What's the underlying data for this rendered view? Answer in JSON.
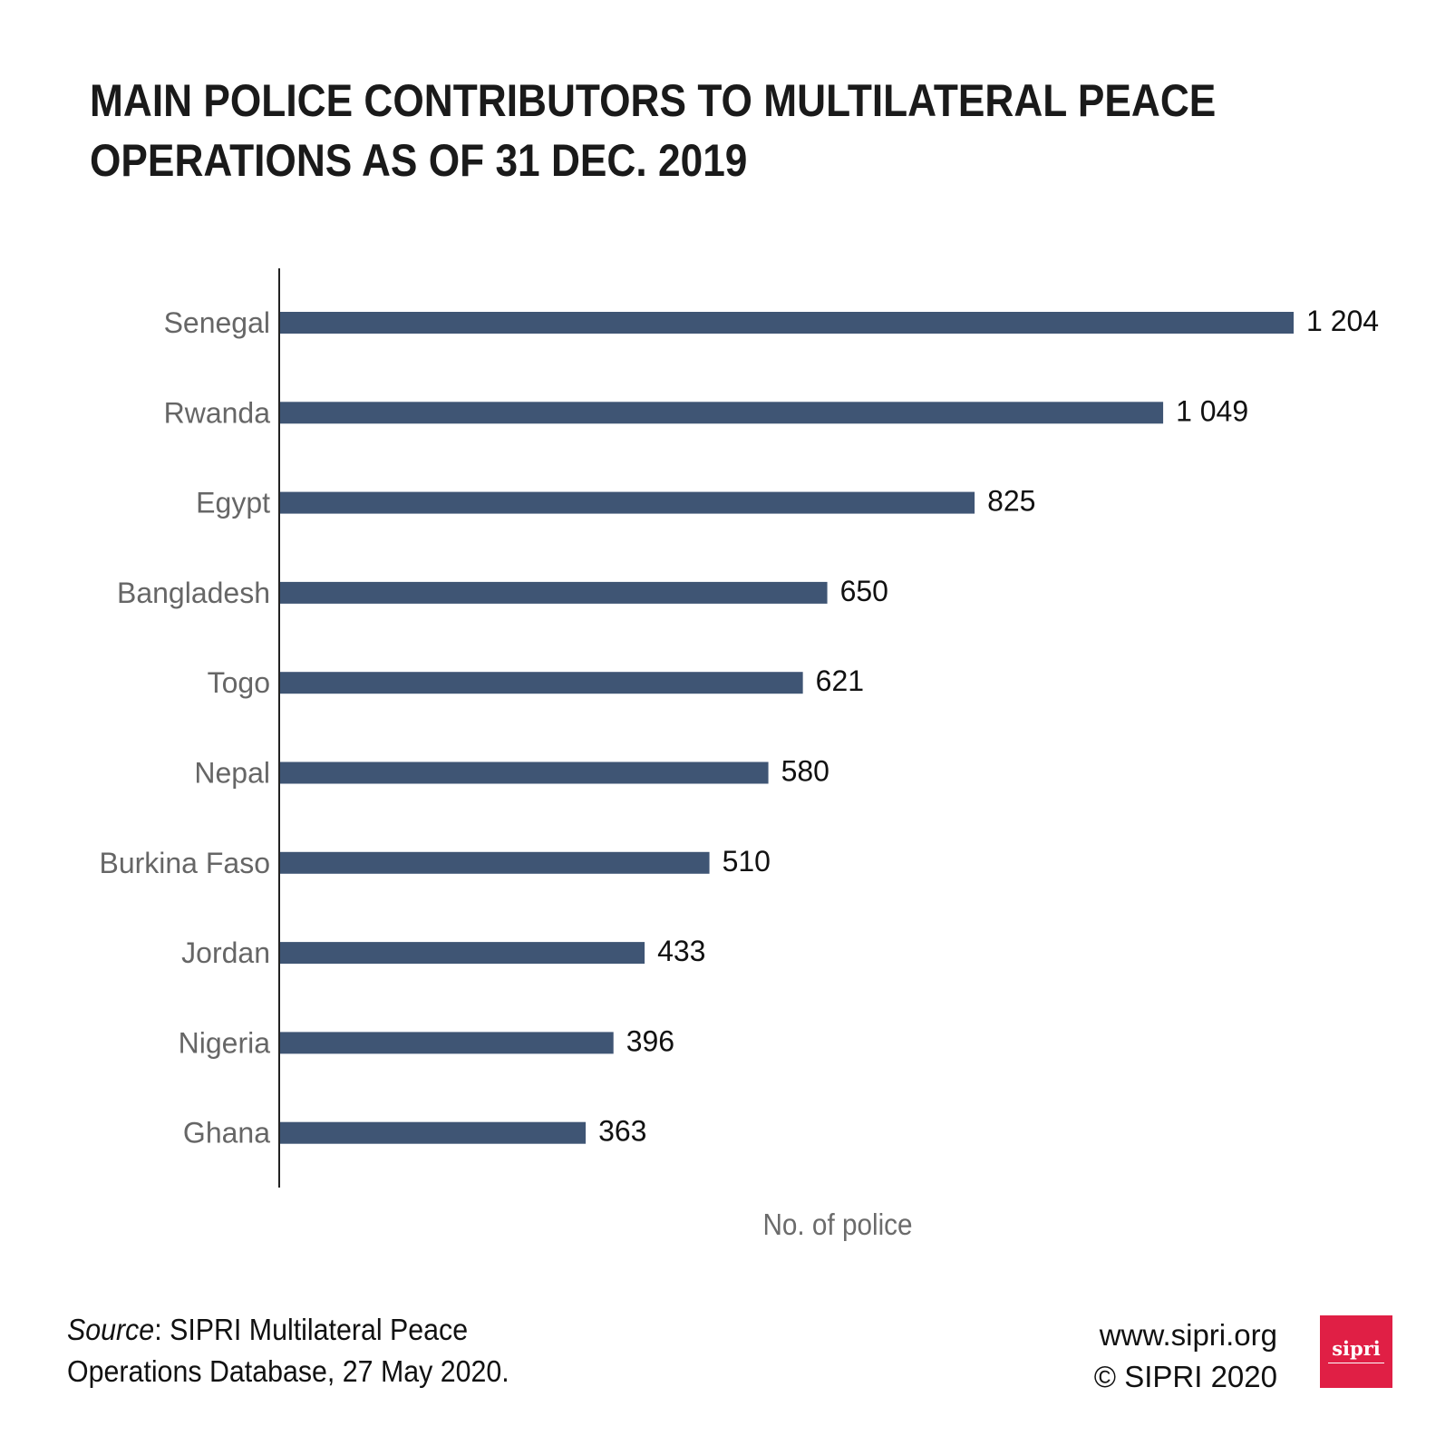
{
  "title": [
    "MAIN POLICE CONTRIBUTORS TO MULTILATERAL PEACE",
    "OPERATIONS AS OF 31 DEC. 2019"
  ],
  "chart_data": {
    "type": "bar",
    "orientation": "horizontal",
    "categories": [
      "Senegal",
      "Rwanda",
      "Egypt",
      "Bangladesh",
      "Togo",
      "Nepal",
      "Burkina Faso",
      "Jordan",
      "Nigeria",
      "Ghana"
    ],
    "values": [
      1204,
      1049,
      825,
      650,
      621,
      580,
      510,
      433,
      396,
      363
    ],
    "value_labels": [
      "1 204",
      "1 049",
      "825",
      "650",
      "621",
      "580",
      "510",
      "433",
      "396",
      "363"
    ],
    "xlabel": "No. of police",
    "xlim": [
      0,
      1204
    ],
    "grid": false,
    "bar_color": "#3f5574"
  },
  "footer": {
    "source_label": "Source",
    "source_text": ": SIPRI Multilateral Peace",
    "source_line2": "Operations Database, 27 May 2020.",
    "website": "www.sipri.org",
    "copyright": "© SIPRI 2020",
    "logo_text": "sipri",
    "logo_color": "#e01f45"
  }
}
